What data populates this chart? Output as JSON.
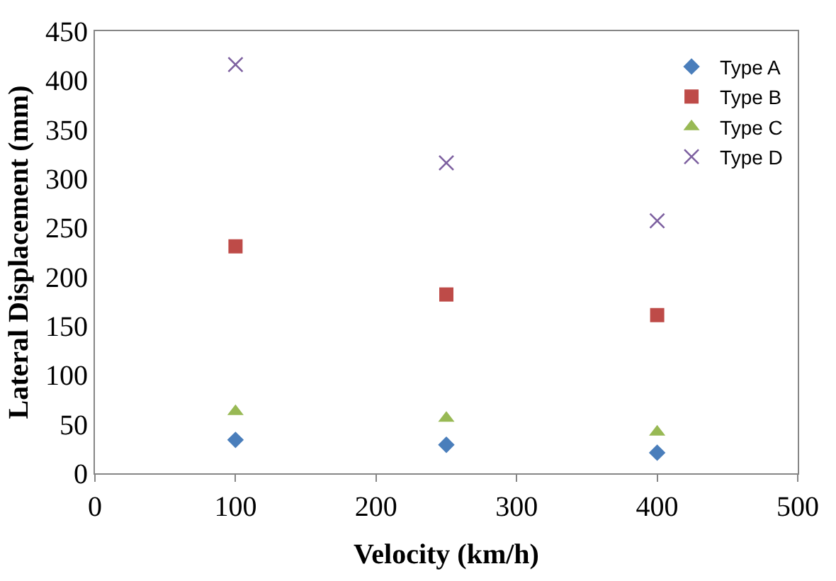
{
  "chart_data": {
    "type": "scatter",
    "xlabel": "Velocity (km/h)",
    "ylabel": "Lateral Displacement (mm)",
    "x": [
      100,
      250,
      400
    ],
    "series": [
      {
        "name": "Type A",
        "color": "#4a7ebb",
        "marker": "diamond",
        "values": [
          34,
          29,
          21
        ]
      },
      {
        "name": "Type B",
        "color": "#be4b48",
        "marker": "square",
        "values": [
          231,
          182,
          161
        ]
      },
      {
        "name": "Type C",
        "color": "#98b954",
        "marker": "triangle",
        "values": [
          63,
          56,
          42
        ]
      },
      {
        "name": "Type D",
        "color": "#7d60a0",
        "marker": "cross",
        "values": [
          416,
          316,
          257
        ]
      }
    ],
    "xlim": [
      0,
      500
    ],
    "xticks": [
      0,
      100,
      200,
      300,
      400,
      500
    ],
    "ylim": [
      0,
      450
    ],
    "yticks": [
      0,
      50,
      100,
      150,
      200,
      250,
      300,
      350,
      400,
      450
    ],
    "grid": false,
    "legend": "top right"
  }
}
